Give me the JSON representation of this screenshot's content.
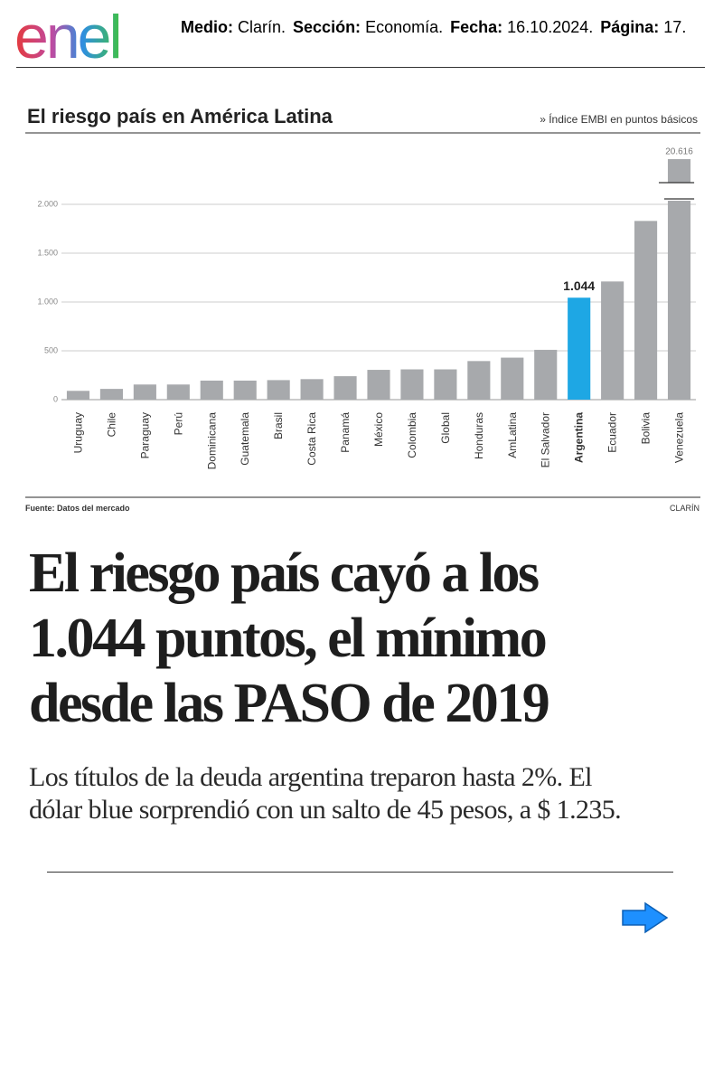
{
  "header": {
    "logo": "enel",
    "fields": [
      {
        "label": "Medio:",
        "value": "Clarín."
      },
      {
        "label": "Sección:",
        "value": "Economía."
      },
      {
        "label": "Fecha:",
        "value": "16.10.2024."
      },
      {
        "label": "Página:",
        "value": "17."
      }
    ]
  },
  "chart_data": {
    "type": "bar",
    "title": "El riesgo país en América Latina",
    "subtitle": "» Índice EMBI en puntos básicos",
    "source": "Fuente: Datos del mercado",
    "credit": "CLARÍN",
    "categories": [
      "Uruguay",
      "Chile",
      "Paraguay",
      "Perú",
      "Dominicana",
      "Guatemala",
      "Brasil",
      "Costa Rica",
      "Panamá",
      "México",
      "Colombia",
      "Global",
      "Honduras",
      "AmLatina",
      "El Salvador",
      "Argentina",
      "Ecuador",
      "Bolivia",
      "Venezuela"
    ],
    "values": [
      90,
      110,
      155,
      155,
      195,
      195,
      200,
      210,
      240,
      305,
      310,
      310,
      395,
      430,
      510,
      1044,
      1210,
      1830,
      20616
    ],
    "value_labels": [
      null,
      null,
      null,
      null,
      null,
      null,
      null,
      null,
      null,
      null,
      null,
      null,
      null,
      null,
      null,
      "1.044",
      null,
      null,
      "20.616"
    ],
    "colors": [
      "#a7a9ac",
      "#a7a9ac",
      "#a7a9ac",
      "#a7a9ac",
      "#a7a9ac",
      "#a7a9ac",
      "#a7a9ac",
      "#a7a9ac",
      "#a7a9ac",
      "#a7a9ac",
      "#a7a9ac",
      "#a7a9ac",
      "#a7a9ac",
      "#a7a9ac",
      "#a7a9ac",
      "#1ea7e4",
      "#a7a9ac",
      "#a7a9ac",
      "#a7a9ac"
    ],
    "ylim": [
      0,
      2000
    ],
    "yticks": [
      0,
      500,
      {
        "value": 1000,
        "label": "1.000"
      },
      {
        "value": 1500,
        "label": "1.500"
      },
      {
        "value": 2000,
        "label": "2.000"
      }
    ],
    "grid": true,
    "axis_break": true
  },
  "article": {
    "headline_lines": [
      "El riesgo país cayó a los",
      "1.044 puntos, el mínimo",
      "desde las PASO  de 2019"
    ],
    "subhead_lines": [
      "Los títulos de la deuda argentina treparon hasta 2%. El",
      "dólar blue sorprendió con un salto de 45 pesos, a $ 1.235."
    ]
  }
}
